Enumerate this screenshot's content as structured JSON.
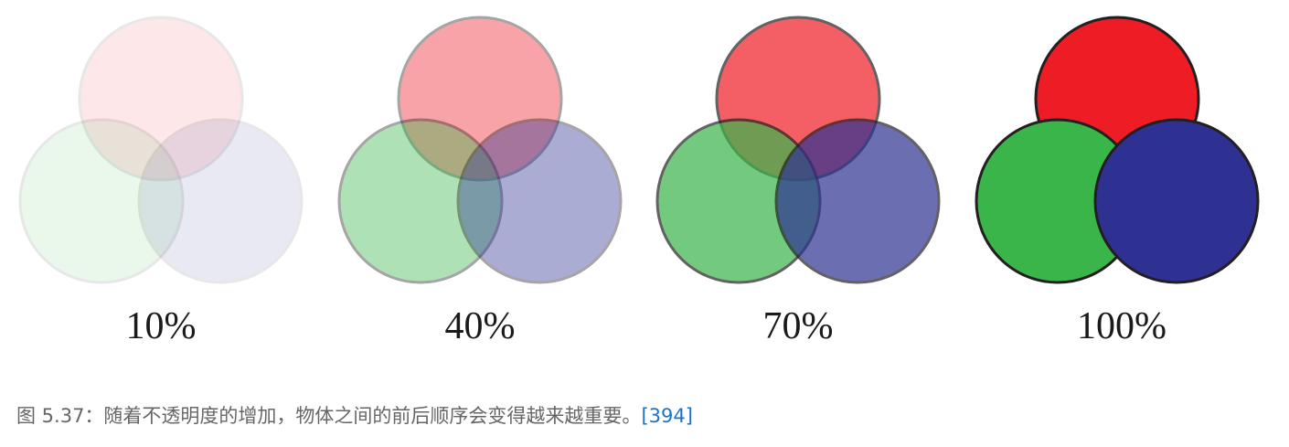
{
  "figure": {
    "colors": {
      "red": "#ee1c25",
      "green": "#39b54a",
      "blue": "#2e3192",
      "outline": "#231f20"
    },
    "panels": [
      {
        "label": "10%",
        "opacity": 0.1
      },
      {
        "label": "40%",
        "opacity": 0.4
      },
      {
        "label": "70%",
        "opacity": 0.7
      },
      {
        "label": "100%",
        "opacity": 1.0
      }
    ]
  },
  "caption": {
    "text": "图 5.37：随着不透明度的增加，物体之间的前后顺序会变得越来越重要。",
    "reference": "[394]"
  }
}
